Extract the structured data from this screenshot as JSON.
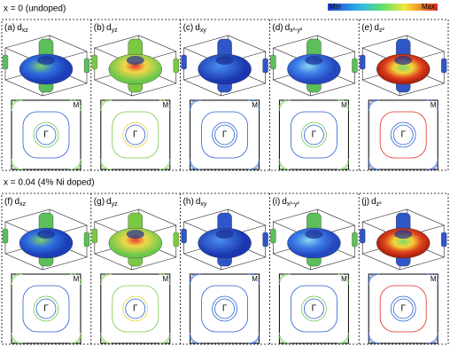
{
  "colorbar": {
    "min": "Min",
    "max": "Max"
  },
  "gamma": "Γ",
  "m": "M",
  "sections": [
    {
      "title": "x = 0 (undoped)",
      "panels": [
        {
          "tag": "(a)",
          "orbital": "d",
          "sub": "xz"
        },
        {
          "tag": "(b)",
          "orbital": "d",
          "sub": "yz"
        },
        {
          "tag": "(c)",
          "orbital": "d",
          "sub": "xy"
        },
        {
          "tag": "(d)",
          "orbital": "d",
          "sub": "x²-y²"
        },
        {
          "tag": "(e)",
          "orbital": "d",
          "sub": "z²"
        }
      ]
    },
    {
      "title": "x = 0.04 (4% Ni doped)",
      "panels": [
        {
          "tag": "(f)",
          "orbital": "d",
          "sub": "xz"
        },
        {
          "tag": "(g)",
          "orbital": "d",
          "sub": "yz"
        },
        {
          "tag": "(h)",
          "orbital": "d",
          "sub": "xy"
        },
        {
          "tag": "(i)",
          "orbital": "d",
          "sub": "x²-y²"
        },
        {
          "tag": "(j)",
          "orbital": "d",
          "sub": "z²"
        }
      ]
    }
  ]
}
